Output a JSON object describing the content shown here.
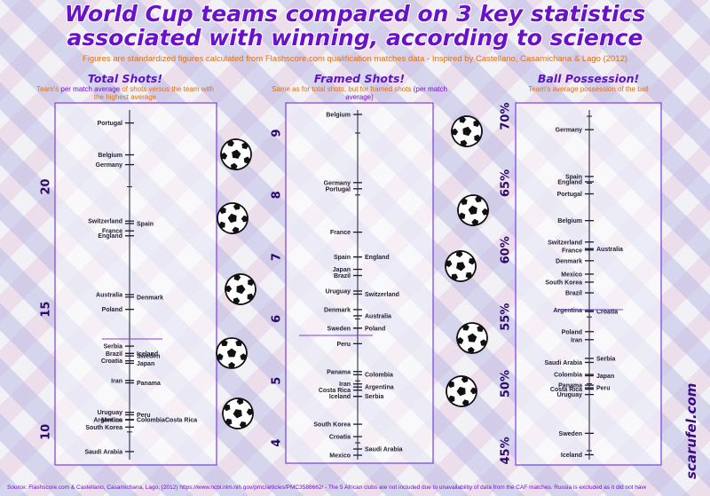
{
  "title": "World Cup teams compared on 3 key statistics associated with winning, according to science",
  "subtitle": "Figures are standardized figures calculated from Flashscore.com qualification matches data - Inspired by Castellano, Casamichana & Lago (2012)",
  "source": "Source: Flashscore.com & Castellano, Casamichana, Lago, (2012) https://www.ncbi.nlm.nih.gov/pmc/articles/PMC3588662/ - The 5 African clubs are not included due to unavailability of data from the CAF matches. Russia is excluded as it did not have to qualify.",
  "brand": "scarufel.com",
  "colors": {
    "title": "#6a12c8",
    "accent": "#d9701a",
    "axis": "#7a3ee6",
    "text": "#2a2a40"
  },
  "icon": "soccer-ball-icon",
  "sections": {
    "total": {
      "title": "Total Shots!",
      "desc_pre": "Team's ",
      "desc_hl": "per match average",
      "desc_post": " of shots versus the team with the highest average"
    },
    "framed": {
      "title": "Framed Shots!",
      "desc_pre": "Same as for total shots, but for framed shots ",
      "desc_hl": "(per match average)",
      "desc_post": ""
    },
    "possession": {
      "title": "Ball Possession!",
      "desc_pre": "Team's average possession of the ball",
      "desc_hl": "",
      "desc_post": ""
    }
  },
  "chart_data": [
    {
      "type": "scatter",
      "title": "Total Shots!",
      "ylim": [
        8.8,
        23.2
      ],
      "ticks": [
        10,
        15,
        20
      ],
      "tick_labels": [
        "10",
        "15",
        "20"
      ],
      "points": [
        {
          "name": "Portugal",
          "value": 22.6,
          "side": "left"
        },
        {
          "name": "Belgium",
          "value": 21.3,
          "side": "left"
        },
        {
          "name": "Germany",
          "value": 20.9,
          "side": "left"
        },
        {
          "name": "Switzerland",
          "value": 18.6,
          "side": "left"
        },
        {
          "name": "Spain",
          "value": 18.5,
          "side": "right"
        },
        {
          "name": "France",
          "value": 18.2,
          "side": "left"
        },
        {
          "name": "England",
          "value": 18.0,
          "side": "left"
        },
        {
          "name": "Australia",
          "value": 15.6,
          "side": "left"
        },
        {
          "name": "Denmark",
          "value": 15.5,
          "side": "right"
        },
        {
          "name": "Poland",
          "value": 15.0,
          "side": "left"
        },
        {
          "name": "Serbia",
          "value": 13.5,
          "side": "left"
        },
        {
          "name": "Brazil",
          "value": 13.2,
          "side": "left"
        },
        {
          "name": "Iceland",
          "value": 13.2,
          "side": "right"
        },
        {
          "name": "Sweden",
          "value": 13.1,
          "side": "right"
        },
        {
          "name": "Croatia",
          "value": 12.9,
          "side": "left"
        },
        {
          "name": "Japan",
          "value": 12.8,
          "side": "right"
        },
        {
          "name": "Iran",
          "value": 12.1,
          "side": "left"
        },
        {
          "name": "Panama",
          "value": 12.0,
          "side": "right"
        },
        {
          "name": "Uruguay",
          "value": 10.8,
          "side": "left"
        },
        {
          "name": "Peru",
          "value": 10.7,
          "side": "right"
        },
        {
          "name": "Mexico",
          "value": 10.5,
          "side": "left"
        },
        {
          "name": "Argentina",
          "value": 10.5,
          "side": "left"
        },
        {
          "name": "Colombia",
          "value": 10.5,
          "side": "right"
        },
        {
          "name": "Costa Rica",
          "value": 10.5,
          "side": "right2"
        },
        {
          "name": "South Korea",
          "value": 10.2,
          "side": "left"
        },
        {
          "name": "Saudi Arabia",
          "value": 9.2,
          "side": "left"
        }
      ]
    },
    {
      "type": "scatter",
      "title": "Framed Shots!",
      "ylim": [
        3.7,
        9.4
      ],
      "ticks": [
        4,
        5,
        6,
        7,
        8,
        9
      ],
      "tick_labels": [
        "4",
        "5",
        "6",
        "7",
        "8",
        "9"
      ],
      "points": [
        {
          "name": "Belgium",
          "value": 9.3,
          "side": "left"
        },
        {
          "name": "Germany",
          "value": 8.2,
          "side": "left"
        },
        {
          "name": "Portugal",
          "value": 8.1,
          "side": "left"
        },
        {
          "name": "France",
          "value": 7.4,
          "side": "left"
        },
        {
          "name": "Spain",
          "value": 7.0,
          "side": "left"
        },
        {
          "name": "England",
          "value": 7.0,
          "side": "right"
        },
        {
          "name": "Japan",
          "value": 6.8,
          "side": "left"
        },
        {
          "name": "Brazil",
          "value": 6.7,
          "side": "left"
        },
        {
          "name": "Uruguay",
          "value": 6.45,
          "side": "left"
        },
        {
          "name": "Switzerland",
          "value": 6.4,
          "side": "right"
        },
        {
          "name": "Denmark",
          "value": 6.15,
          "side": "left"
        },
        {
          "name": "Australia",
          "value": 6.05,
          "side": "right"
        },
        {
          "name": "Poland",
          "value": 5.85,
          "side": "right"
        },
        {
          "name": "Sweden",
          "value": 5.85,
          "side": "left"
        },
        {
          "name": "Peru",
          "value": 5.6,
          "side": "left"
        },
        {
          "name": "Panama",
          "value": 5.15,
          "side": "left"
        },
        {
          "name": "Colombia",
          "value": 5.1,
          "side": "right"
        },
        {
          "name": "Iran",
          "value": 4.95,
          "side": "left"
        },
        {
          "name": "Argentina",
          "value": 4.9,
          "side": "right"
        },
        {
          "name": "Costa Rica",
          "value": 4.85,
          "side": "left"
        },
        {
          "name": "Iceland",
          "value": 4.75,
          "side": "left"
        },
        {
          "name": "Serbia",
          "value": 4.75,
          "side": "right"
        },
        {
          "name": "South Korea",
          "value": 4.3,
          "side": "left"
        },
        {
          "name": "Croatia",
          "value": 4.1,
          "side": "left"
        },
        {
          "name": "Saudi Arabia",
          "value": 3.9,
          "side": "right"
        },
        {
          "name": "Mexico",
          "value": 3.8,
          "side": "left"
        }
      ]
    },
    {
      "type": "scatter",
      "title": "Ball Possession!",
      "ylim": [
        44.2,
        70.6
      ],
      "ticks": [
        45,
        50,
        55,
        60,
        65,
        70
      ],
      "tick_labels": [
        "45%",
        "50%",
        "55%",
        "60%",
        "65%",
        "70%"
      ],
      "points": [
        {
          "name": "Germany",
          "value": 69.0,
          "side": "left"
        },
        {
          "name": "Spain",
          "value": 65.5,
          "side": "left"
        },
        {
          "name": "England",
          "value": 65.1,
          "side": "left"
        },
        {
          "name": "Portugal",
          "value": 64.2,
          "side": "left"
        },
        {
          "name": "Belgium",
          "value": 62.2,
          "side": "left"
        },
        {
          "name": "Switzerland",
          "value": 60.6,
          "side": "left"
        },
        {
          "name": "France",
          "value": 60.0,
          "side": "left"
        },
        {
          "name": "Australia",
          "value": 60.1,
          "side": "right"
        },
        {
          "name": "Denmark",
          "value": 59.2,
          "side": "left"
        },
        {
          "name": "Mexico",
          "value": 58.2,
          "side": "left"
        },
        {
          "name": "South Korea",
          "value": 57.6,
          "side": "left"
        },
        {
          "name": "Brazil",
          "value": 56.8,
          "side": "left"
        },
        {
          "name": "Argentina",
          "value": 55.5,
          "side": "left"
        },
        {
          "name": "Croatia",
          "value": 55.4,
          "side": "right"
        },
        {
          "name": "Poland",
          "value": 53.9,
          "side": "left"
        },
        {
          "name": "Iran",
          "value": 53.3,
          "side": "left"
        },
        {
          "name": "Serbia",
          "value": 51.9,
          "side": "right"
        },
        {
          "name": "Saudi Arabia",
          "value": 51.6,
          "side": "left"
        },
        {
          "name": "Colombia",
          "value": 50.7,
          "side": "left"
        },
        {
          "name": "Japan",
          "value": 50.6,
          "side": "right"
        },
        {
          "name": "Panama",
          "value": 49.9,
          "side": "left"
        },
        {
          "name": "Costa Rica",
          "value": 49.6,
          "side": "left"
        },
        {
          "name": "Peru",
          "value": 49.7,
          "side": "right"
        },
        {
          "name": "Uruguay",
          "value": 49.2,
          "side": "left"
        },
        {
          "name": "Sweden",
          "value": 46.3,
          "side": "left"
        },
        {
          "name": "Iceland",
          "value": 44.7,
          "side": "left"
        }
      ]
    }
  ]
}
